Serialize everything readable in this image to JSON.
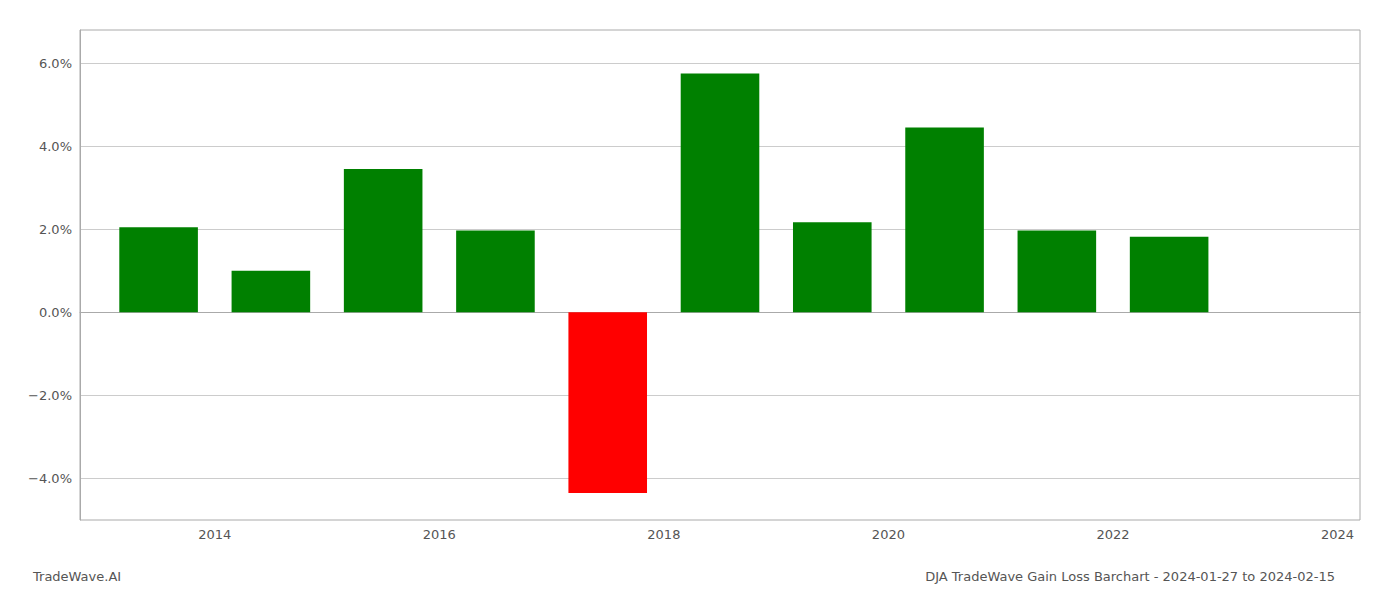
{
  "chart_data": {
    "type": "bar",
    "title": "DJA TradeWave Gain Loss Barchart - 2024-01-27 to 2024-02-15",
    "annotations": [
      "TradeWave.AI"
    ],
    "x": [
      2013.5,
      2014.5,
      2015.5,
      2016.5,
      2017.5,
      2018.5,
      2019.5,
      2020.5,
      2021.5,
      2022.5
    ],
    "values": [
      2.05,
      1.0,
      3.45,
      1.97,
      -4.35,
      5.75,
      2.17,
      4.45,
      1.97,
      1.82
    ],
    "colors": [
      "#008000",
      "#008000",
      "#008000",
      "#008000",
      "#ff0000",
      "#008000",
      "#008000",
      "#008000",
      "#008000",
      "#008000"
    ],
    "xlim": [
      2012.8,
      2024.2
    ],
    "xticks": [
      2014,
      2016,
      2018,
      2020,
      2022,
      2024
    ],
    "ylim": [
      -5.0,
      6.8
    ],
    "yticks": [
      {
        "value": -4.0,
        "label": "−4.0%"
      },
      {
        "value": -2.0,
        "label": "−2.0%"
      },
      {
        "value": 0.0,
        "label": "0.0%"
      },
      {
        "value": 2.0,
        "label": "2.0%"
      },
      {
        "value": 4.0,
        "label": "4.0%"
      },
      {
        "value": 6.0,
        "label": "6.0%"
      }
    ],
    "grid": true
  }
}
